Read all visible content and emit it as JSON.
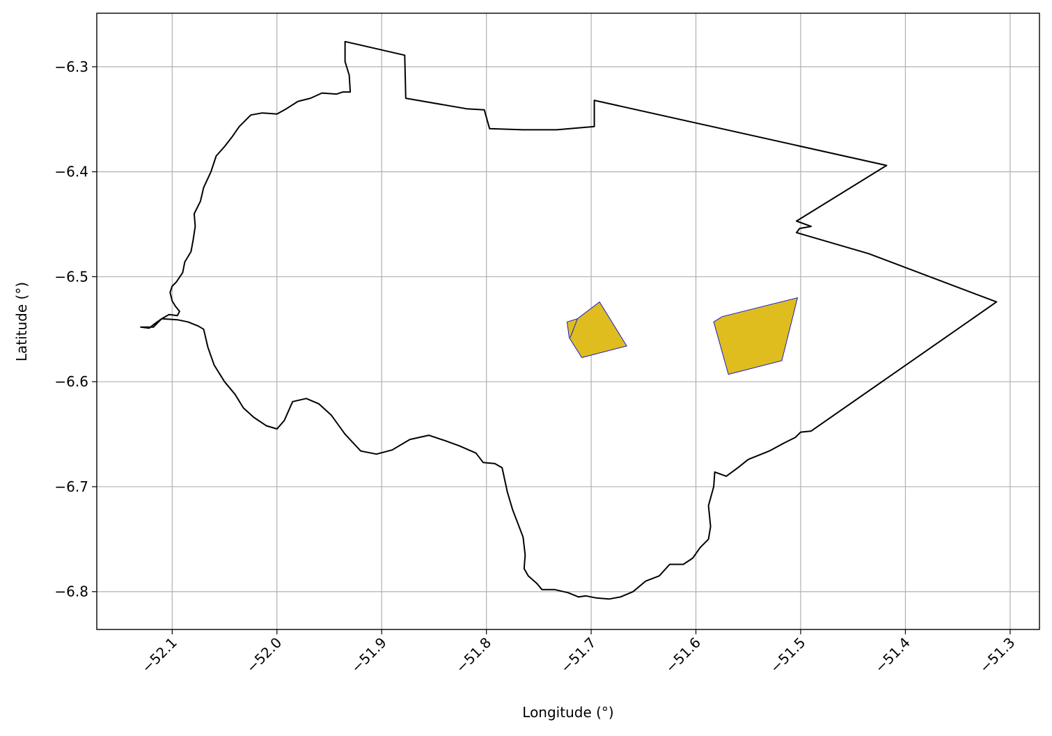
{
  "chart_data": {
    "type": "map",
    "title": "",
    "xlabel": "Longitude (°)",
    "ylabel": "Latitude (°)",
    "xlim": [
      -52.172,
      -51.272
    ],
    "ylim": [
      -6.836,
      -6.249
    ],
    "grid": true,
    "xticks": [
      -52.1,
      -52.0,
      -51.9,
      -51.8,
      -51.7,
      -51.6,
      -51.5,
      -51.4,
      -51.3
    ],
    "xtick_labels": [
      "−52.1",
      "−52.0",
      "−51.9",
      "−51.8",
      "−51.7",
      "−51.6",
      "−51.5",
      "−51.4",
      "−51.3"
    ],
    "yticks": [
      -6.3,
      -6.4,
      -6.5,
      -6.6,
      -6.7,
      -6.8
    ],
    "ytick_labels": [
      "−6.3",
      "−6.4",
      "−6.5",
      "−6.6",
      "−6.7",
      "−6.8"
    ],
    "colors": {
      "boundary": "#000000",
      "area_fill": "#DFBD1F",
      "area_edge": "#1a1acc",
      "grid": "#b0b0b0"
    },
    "boundary": [
      [
        -51.935,
        -6.276
      ],
      [
        -51.878,
        -6.289
      ],
      [
        -51.877,
        -6.33
      ],
      [
        -51.819,
        -6.34
      ],
      [
        -51.802,
        -6.341
      ],
      [
        -51.797,
        -6.359
      ],
      [
        -51.765,
        -6.36
      ],
      [
        -51.733,
        -6.36
      ],
      [
        -51.697,
        -6.357
      ],
      [
        -51.697,
        -6.332
      ],
      [
        -51.418,
        -6.394
      ],
      [
        -51.504,
        -6.447
      ],
      [
        -51.49,
        -6.452
      ],
      [
        -51.501,
        -6.454
      ],
      [
        -51.504,
        -6.458
      ],
      [
        -51.435,
        -6.478
      ],
      [
        -51.313,
        -6.524
      ],
      [
        -51.49,
        -6.647
      ],
      [
        -51.5,
        -6.648
      ],
      [
        -51.505,
        -6.653
      ],
      [
        -51.515,
        -6.658
      ],
      [
        -51.53,
        -6.666
      ],
      [
        -51.55,
        -6.674
      ],
      [
        -51.56,
        -6.682
      ],
      [
        -51.571,
        -6.69
      ],
      [
        -51.582,
        -6.686
      ],
      [
        -51.583,
        -6.7
      ],
      [
        -51.588,
        -6.718
      ],
      [
        -51.586,
        -6.738
      ],
      [
        -51.588,
        -6.75
      ],
      [
        -51.596,
        -6.758
      ],
      [
        -51.603,
        -6.768
      ],
      [
        -51.612,
        -6.774
      ],
      [
        -51.625,
        -6.774
      ],
      [
        -51.635,
        -6.785
      ],
      [
        -51.648,
        -6.79
      ],
      [
        -51.66,
        -6.8
      ],
      [
        -51.672,
        -6.805
      ],
      [
        -51.683,
        -6.807
      ],
      [
        -51.695,
        -6.806
      ],
      [
        -51.705,
        -6.804
      ],
      [
        -51.712,
        -6.805
      ],
      [
        -51.722,
        -6.801
      ],
      [
        -51.735,
        -6.798
      ],
      [
        -51.747,
        -6.798
      ],
      [
        -51.752,
        -6.792
      ],
      [
        -51.76,
        -6.785
      ],
      [
        -51.764,
        -6.778
      ],
      [
        -51.763,
        -6.765
      ],
      [
        -51.765,
        -6.748
      ],
      [
        -51.77,
        -6.735
      ],
      [
        -51.775,
        -6.722
      ],
      [
        -51.78,
        -6.705
      ],
      [
        -51.785,
        -6.682
      ],
      [
        -51.792,
        -6.678
      ],
      [
        -51.803,
        -6.677
      ],
      [
        -51.81,
        -6.668
      ],
      [
        -51.826,
        -6.661
      ],
      [
        -51.84,
        -6.656
      ],
      [
        -51.855,
        -6.651
      ],
      [
        -51.873,
        -6.655
      ],
      [
        -51.89,
        -6.665
      ],
      [
        -51.905,
        -6.669
      ],
      [
        -51.92,
        -6.666
      ],
      [
        -51.935,
        -6.65
      ],
      [
        -51.948,
        -6.632
      ],
      [
        -51.96,
        -6.621
      ],
      [
        -51.972,
        -6.616
      ],
      [
        -51.985,
        -6.619
      ],
      [
        -51.993,
        -6.637
      ],
      [
        -52.0,
        -6.645
      ],
      [
        -52.01,
        -6.642
      ],
      [
        -52.022,
        -6.634
      ],
      [
        -52.032,
        -6.625
      ],
      [
        -52.04,
        -6.612
      ],
      [
        -52.05,
        -6.6
      ],
      [
        -52.06,
        -6.584
      ],
      [
        -52.066,
        -6.567
      ],
      [
        -52.07,
        -6.55
      ],
      [
        -52.075,
        -6.547
      ],
      [
        -52.085,
        -6.543
      ],
      [
        -52.095,
        -6.541
      ],
      [
        -52.11,
        -6.54
      ],
      [
        -52.117,
        -6.545
      ],
      [
        -52.122,
        -6.549
      ],
      [
        -52.13,
        -6.548
      ],
      [
        -52.118,
        -6.548
      ],
      [
        -52.11,
        -6.54
      ],
      [
        -52.103,
        -6.536
      ],
      [
        -52.095,
        -6.537
      ],
      [
        -52.093,
        -6.533
      ],
      [
        -52.097,
        -6.528
      ],
      [
        -52.1,
        -6.523
      ],
      [
        -52.102,
        -6.515
      ],
      [
        -52.1,
        -6.509
      ],
      [
        -52.096,
        -6.505
      ],
      [
        -52.09,
        -6.496
      ],
      [
        -52.088,
        -6.486
      ],
      [
        -52.082,
        -6.476
      ],
      [
        -52.08,
        -6.465
      ],
      [
        -52.078,
        -6.452
      ],
      [
        -52.079,
        -6.44
      ],
      [
        -52.073,
        -6.428
      ],
      [
        -52.07,
        -6.415
      ],
      [
        -52.063,
        -6.4
      ],
      [
        -52.058,
        -6.385
      ],
      [
        -52.05,
        -6.376
      ],
      [
        -52.043,
        -6.367
      ],
      [
        -52.036,
        -6.357
      ],
      [
        -52.03,
        -6.351
      ],
      [
        -52.025,
        -6.346
      ],
      [
        -52.014,
        -6.344
      ],
      [
        -52.0,
        -6.345
      ],
      [
        -51.991,
        -6.34
      ],
      [
        -51.98,
        -6.333
      ],
      [
        -51.968,
        -6.33
      ],
      [
        -51.957,
        -6.325
      ],
      [
        -51.943,
        -6.326
      ],
      [
        -51.937,
        -6.324
      ],
      [
        -51.93,
        -6.324
      ],
      [
        -51.931,
        -6.308
      ],
      [
        -51.935,
        -6.295
      ],
      [
        -51.935,
        -6.276
      ]
    ],
    "areas": [
      {
        "polygon": [
          [
            -51.723,
            -6.543
          ],
          [
            -51.713,
            -6.54
          ],
          [
            -51.692,
            -6.524
          ],
          [
            -51.666,
            -6.566
          ],
          [
            -51.709,
            -6.577
          ],
          [
            -51.721,
            -6.558
          ]
        ],
        "inner_edge": [
          [
            -51.713,
            -6.54
          ],
          [
            -51.72,
            -6.558
          ]
        ]
      },
      {
        "polygon": [
          [
            -51.583,
            -6.543
          ],
          [
            -51.575,
            -6.538
          ],
          [
            -51.503,
            -6.52
          ],
          [
            -51.518,
            -6.58
          ],
          [
            -51.569,
            -6.593
          ],
          [
            -51.583,
            -6.543
          ]
        ],
        "inner_edge": []
      }
    ]
  }
}
